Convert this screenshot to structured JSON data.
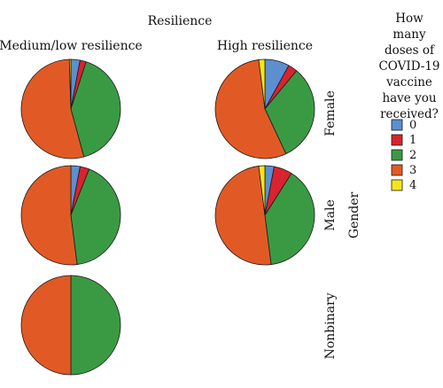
{
  "chart_data": {
    "type": "pie",
    "title": "Resilience",
    "column_labels": [
      "Medium/low resilience",
      "High resilience"
    ],
    "row_labels": [
      "Female",
      "Male",
      "Nonbinary"
    ],
    "row_axis_title": "Gender",
    "legend": {
      "title_lines": [
        "How",
        "many",
        "doses of",
        "COVID-19",
        "vaccine",
        "have you",
        "received?"
      ],
      "placement": "right",
      "entries": [
        {
          "label": "0",
          "color": "#5b8fd0"
        },
        {
          "label": "1",
          "color": "#d9232e"
        },
        {
          "label": "2",
          "color": "#3a9a43"
        },
        {
          "label": "3",
          "color": "#e15a26"
        },
        {
          "label": "4",
          "color": "#f4e61a"
        }
      ]
    },
    "categories": [
      "0",
      "1",
      "2",
      "3",
      "4"
    ],
    "panels": [
      {
        "row": "Female",
        "column": "Medium/low resilience",
        "values": [
          3,
          2,
          41,
          54,
          0.5
        ]
      },
      {
        "row": "Female",
        "column": "High resilience",
        "values": [
          8,
          3,
          32,
          55,
          2
        ]
      },
      {
        "row": "Male",
        "column": "Medium/low resilience",
        "values": [
          3,
          3,
          42,
          52,
          0
        ]
      },
      {
        "row": "Male",
        "column": "High resilience",
        "values": [
          3,
          6,
          39,
          50,
          2
        ]
      },
      {
        "row": "Nonbinary",
        "column": "Medium/low resilience",
        "values": [
          0,
          0,
          50,
          50,
          0
        ]
      }
    ]
  }
}
